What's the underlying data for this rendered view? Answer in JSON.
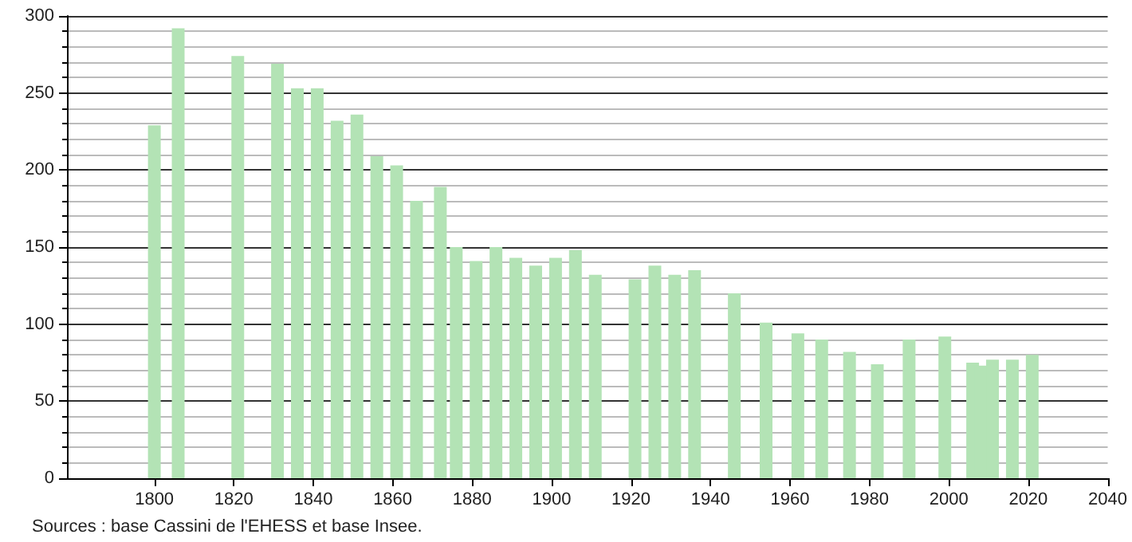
{
  "chart_data": {
    "type": "bar",
    "x": [
      1800,
      1806,
      1821,
      1831,
      1836,
      1841,
      1846,
      1851,
      1856,
      1861,
      1866,
      1872,
      1876,
      1881,
      1886,
      1891,
      1896,
      1901,
      1906,
      1911,
      1921,
      1926,
      1931,
      1936,
      1946,
      1954,
      1962,
      1968,
      1975,
      1982,
      1990,
      1999,
      2006,
      2008,
      2011,
      2016,
      2021
    ],
    "values": [
      229,
      292,
      274,
      269,
      253,
      253,
      232,
      236,
      209,
      203,
      180,
      189,
      150,
      141,
      150,
      143,
      138,
      143,
      148,
      132,
      129,
      138,
      132,
      135,
      120,
      101,
      94,
      90,
      82,
      74,
      90,
      92,
      75,
      73,
      77,
      77,
      80
    ],
    "color": "#b3e3b5",
    "xlim": [
      1778,
      2040
    ],
    "xticks": [
      1800,
      1820,
      1840,
      1860,
      1880,
      1900,
      1920,
      1940,
      1960,
      1980,
      2000,
      2020,
      2040
    ],
    "ylim": [
      0,
      300
    ],
    "yticks": [
      0,
      50,
      100,
      150,
      200,
      250,
      300
    ],
    "grid": "y",
    "annotations": [
      "Sources : base Cassini de l'EHESS et base Insee."
    ]
  }
}
